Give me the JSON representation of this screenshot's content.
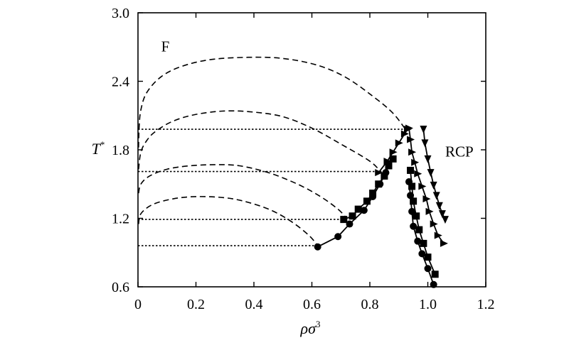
{
  "chart_data": {
    "type": "line",
    "title": "",
    "xlabel": "ρσ",
    "xlabel_sup": "3",
    "ylabel": "T",
    "ylabel_sup": "*",
    "xlim": [
      0,
      1.2
    ],
    "ylim": [
      0.6,
      3.0
    ],
    "xticks": [
      "0",
      "0.2",
      "0.4",
      "0.6",
      "0.8",
      "1.0",
      "1.2"
    ],
    "yticks": [
      "0.6",
      "1.2",
      "1.8",
      "2.4",
      "3.0"
    ],
    "grid": false,
    "annotations": [
      {
        "text": "F",
        "x": 0.08,
        "y": 2.66
      },
      {
        "text": "RCP",
        "x": 1.06,
        "y": 1.74
      }
    ],
    "series": [
      {
        "style": "dashed",
        "x": [
          0.002,
          0.004,
          0.01,
          0.03,
          0.08,
          0.15,
          0.25,
          0.38,
          0.5,
          0.62,
          0.72,
          0.82,
          0.88,
          0.92
        ],
        "y": [
          1.82,
          2.0,
          2.15,
          2.3,
          2.44,
          2.53,
          2.59,
          2.61,
          2.6,
          2.54,
          2.43,
          2.25,
          2.12,
          1.99
        ]
      },
      {
        "style": "dashed",
        "x": [
          0.002,
          0.01,
          0.03,
          0.06,
          0.12,
          0.2,
          0.3,
          0.4,
          0.5,
          0.6,
          0.7,
          0.8,
          0.84
        ],
        "y": [
          1.63,
          1.78,
          1.88,
          1.96,
          2.05,
          2.11,
          2.14,
          2.13,
          2.09,
          1.99,
          1.85,
          1.7,
          1.6
        ]
      },
      {
        "style": "dashed",
        "x": [
          0.002,
          0.01,
          0.04,
          0.1,
          0.18,
          0.27,
          0.35,
          0.45,
          0.55,
          0.63,
          0.69,
          0.72
        ],
        "y": [
          1.42,
          1.5,
          1.57,
          1.63,
          1.66,
          1.67,
          1.66,
          1.6,
          1.5,
          1.39,
          1.28,
          1.2
        ]
      },
      {
        "style": "dashed",
        "x": [
          0.002,
          0.01,
          0.05,
          0.12,
          0.2,
          0.3,
          0.38,
          0.46,
          0.53,
          0.59,
          0.62
        ],
        "y": [
          1.15,
          1.24,
          1.32,
          1.37,
          1.39,
          1.38,
          1.34,
          1.27,
          1.17,
          1.05,
          0.96
        ]
      },
      {
        "style": "dotted",
        "x": [
          0.0,
          0.92
        ],
        "y": [
          1.98,
          1.98
        ]
      },
      {
        "style": "dotted",
        "x": [
          0.0,
          0.84
        ],
        "y": [
          1.61,
          1.61
        ]
      },
      {
        "style": "dotted",
        "x": [
          0.0,
          0.72
        ],
        "y": [
          1.19,
          1.19
        ]
      },
      {
        "style": "dotted",
        "x": [
          0.0,
          0.62
        ],
        "y": [
          0.96,
          0.96
        ]
      },
      {
        "style": "solid",
        "marker": "circle",
        "x": [
          0.62,
          0.69,
          0.73,
          0.78,
          0.81,
          0.835,
          0.855
        ],
        "y": [
          0.95,
          1.04,
          1.15,
          1.27,
          1.39,
          1.5,
          1.6
        ]
      },
      {
        "style": "solid",
        "marker": "square",
        "x": [
          0.71,
          0.74,
          0.76,
          0.79,
          0.81,
          0.83,
          0.85,
          0.865,
          0.88
        ],
        "y": [
          1.19,
          1.22,
          1.28,
          1.35,
          1.42,
          1.5,
          1.57,
          1.66,
          1.72
        ]
      },
      {
        "style": "solid",
        "marker": "triangle-right",
        "x": [
          0.83,
          0.86,
          0.88,
          0.9,
          0.92,
          0.93
        ],
        "y": [
          1.6,
          1.7,
          1.78,
          1.86,
          1.94,
          1.98
        ]
      },
      {
        "style": "solid",
        "marker": "circle",
        "x": [
          0.935,
          0.94,
          0.945,
          0.95,
          0.965,
          0.98,
          1.0,
          1.02
        ],
        "y": [
          1.52,
          1.4,
          1.26,
          1.13,
          1.0,
          0.89,
          0.76,
          0.62
        ]
      },
      {
        "style": "solid",
        "marker": "square",
        "x": [
          0.94,
          0.945,
          0.95,
          0.96,
          0.97,
          0.985,
          1.0,
          1.025
        ],
        "y": [
          1.62,
          1.48,
          1.35,
          1.22,
          1.1,
          0.98,
          0.86,
          0.71
        ]
      },
      {
        "style": "solid",
        "marker": "triangle-right",
        "x": [
          0.935,
          0.94,
          0.945,
          0.955,
          0.965,
          0.98,
          0.995,
          1.005,
          1.02,
          1.035,
          1.055
        ],
        "y": [
          1.99,
          1.89,
          1.78,
          1.69,
          1.59,
          1.48,
          1.37,
          1.26,
          1.15,
          1.05,
          0.98
        ]
      },
      {
        "style": "solid",
        "marker": "triangle-down",
        "x": [
          0.985,
          0.99,
          1.0,
          1.01,
          1.02,
          1.03,
          1.04,
          1.05,
          1.06
        ],
        "y": [
          1.98,
          1.86,
          1.72,
          1.6,
          1.49,
          1.4,
          1.31,
          1.24,
          1.19
        ]
      }
    ]
  }
}
